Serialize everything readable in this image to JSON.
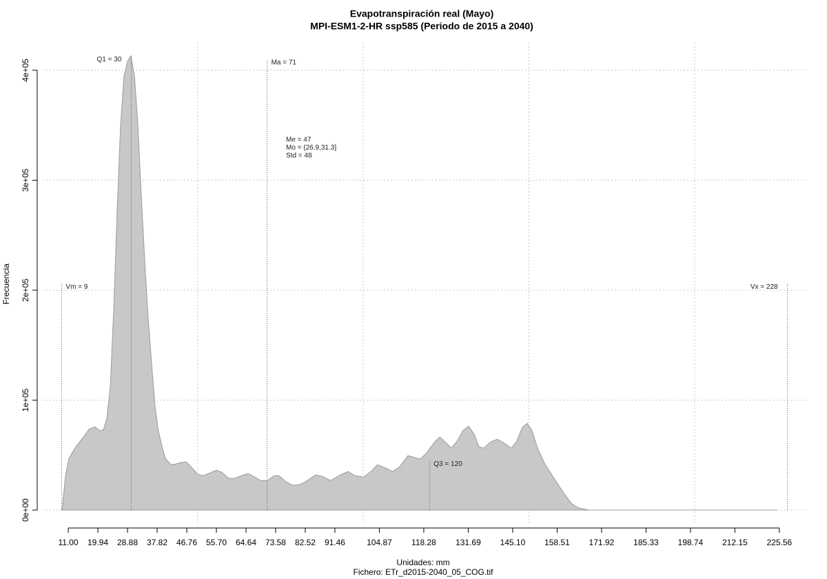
{
  "chart_data": {
    "type": "area",
    "title": "Evapotranspiración real (Mayo)",
    "subtitle": "MPI-ESM1-2-HR ssp585 (Periodo de 2015 a 2040)",
    "xlabel": "Unidades: mm",
    "caption": "Fichero: ETr_d2015-2040_05_COG.tif",
    "ylabel": "Frecuencia",
    "color": "#c8c8c8",
    "edge_color": "#9a9a9a",
    "grid": true,
    "xlim": [
      3.3,
      233.7
    ],
    "ylim": [
      -12500,
      425000
    ],
    "xticks": [
      {
        "value": 11,
        "label": "11.00"
      },
      {
        "value": 19.94,
        "label": "19.94"
      },
      {
        "value": 28.88,
        "label": "28.88"
      },
      {
        "value": 37.82,
        "label": "37.82"
      },
      {
        "value": 46.76,
        "label": "46.76"
      },
      {
        "value": 55.7,
        "label": "55.70"
      },
      {
        "value": 64.64,
        "label": "64.64"
      },
      {
        "value": 73.58,
        "label": "73.58"
      },
      {
        "value": 82.52,
        "label": "82.52"
      },
      {
        "value": 91.46,
        "label": "91.46"
      },
      {
        "value": 104.87,
        "label": "104.87"
      },
      {
        "value": 118.28,
        "label": "118.28"
      },
      {
        "value": 131.69,
        "label": "131.69"
      },
      {
        "value": 145.1,
        "label": "145.10"
      },
      {
        "value": 158.51,
        "label": "158.51"
      },
      {
        "value": 171.92,
        "label": "171.92"
      },
      {
        "value": 185.33,
        "label": "185.33"
      },
      {
        "value": 198.74,
        "label": "198.74"
      },
      {
        "value": 212.15,
        "label": "212.15"
      },
      {
        "value": 225.56,
        "label": "225.56"
      }
    ],
    "xgrid": [
      50,
      100,
      150,
      200
    ],
    "yticks": [
      {
        "value": 0,
        "label": "0e+00"
      },
      {
        "value": 100000,
        "label": "1e+05"
      },
      {
        "value": 200000,
        "label": "2e+05"
      },
      {
        "value": 300000,
        "label": "3e+05"
      },
      {
        "value": 400000,
        "label": "4e+05"
      }
    ],
    "x": [
      9.1,
      10.2,
      11.2,
      13.3,
      15.4,
      17.4,
      19.1,
      20.6,
      21.6,
      22.6,
      23.7,
      24.7,
      25.8,
      26.8,
      27.8,
      28.9,
      29.9,
      31.0,
      32.0,
      33.0,
      34.1,
      35.1,
      36.2,
      37.2,
      38.2,
      39.3,
      40.3,
      42.0,
      43.4,
      44.9,
      46.6,
      48.2,
      50.1,
      51.7,
      53.8,
      55.7,
      57.4,
      59.4,
      61.1,
      63.2,
      65.3,
      66.9,
      69.0,
      71.1,
      73.2,
      74.6,
      76.7,
      78.8,
      80.9,
      82.9,
      85.6,
      87.7,
      90.2,
      92.7,
      95.4,
      97.5,
      100.2,
      102.3,
      104.3,
      106.4,
      108.9,
      111.0,
      113.5,
      115.1,
      117.2,
      119.3,
      121.4,
      123.1,
      124.5,
      126.6,
      128.3,
      130.2,
      131.8,
      133.5,
      134.9,
      136.4,
      138.4,
      140.5,
      142.6,
      144.7,
      146.3,
      148.0,
      149.5,
      150.9,
      152.6,
      154.7,
      156.7,
      158.8,
      160.9,
      163.0,
      165.1,
      168.2,
      224.9
    ],
    "values": [
      0,
      31300,
      47000,
      57600,
      65700,
      73900,
      75700,
      72000,
      73200,
      82600,
      112700,
      181500,
      275400,
      350500,
      394400,
      408100,
      413100,
      394400,
      350500,
      288000,
      225400,
      175300,
      131500,
      93900,
      72000,
      57600,
      47000,
      41300,
      41900,
      43200,
      43800,
      38800,
      32600,
      31300,
      33800,
      36300,
      34400,
      28800,
      28800,
      31300,
      33200,
      30700,
      26900,
      26900,
      31300,
      31300,
      25700,
      22500,
      23200,
      26300,
      31900,
      30700,
      26900,
      31300,
      35100,
      31300,
      30000,
      35100,
      41300,
      38800,
      35100,
      39400,
      49500,
      48200,
      46300,
      52600,
      61300,
      66400,
      62600,
      56300,
      62600,
      72600,
      76400,
      68900,
      57600,
      56300,
      62000,
      64500,
      60700,
      56300,
      62600,
      75100,
      78900,
      72600,
      56300,
      42600,
      33200,
      23200,
      13800,
      5600,
      1900,
      0,
      0
    ],
    "annotations": [
      {
        "label": "Vm = 9",
        "x": 9,
        "y": 206000,
        "side": "right"
      },
      {
        "label": "Q1 = 30",
        "x": 30,
        "y": 413000,
        "side": "left"
      },
      {
        "label": "Ma = 71",
        "x": 71,
        "y": 410000,
        "side": "right"
      },
      {
        "label": "Q3 = 120",
        "x": 120,
        "y": 45000,
        "side": "right"
      },
      {
        "label": "Vx = 228",
        "x": 228,
        "y": 206000,
        "side": "left"
      }
    ],
    "stats": [
      "Me = 47",
      "Mo = (26.9,31.3]",
      "Std = 48"
    ]
  }
}
